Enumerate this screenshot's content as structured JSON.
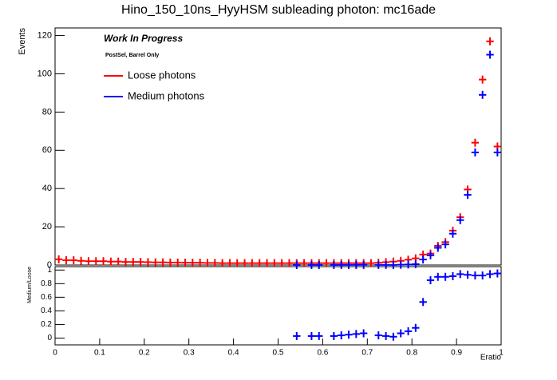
{
  "chart_data": [
    {
      "type": "scatter",
      "title": "Hino_150_10ns_HyyHSM subleading photon: mc16ade",
      "ylabel": "Events",
      "annotations": [
        "Work In Progress",
        "PostSel, Barrel Only"
      ],
      "xlim": [
        0,
        1
      ],
      "ylim": [
        0,
        124
      ],
      "yticks": [
        0,
        20,
        40,
        60,
        80,
        100,
        120
      ],
      "legend": "top-left",
      "x": [
        0.0083,
        0.025,
        0.0417,
        0.0583,
        0.075,
        0.0917,
        0.1083,
        0.125,
        0.1417,
        0.1583,
        0.175,
        0.1917,
        0.2083,
        0.225,
        0.2417,
        0.2583,
        0.275,
        0.2917,
        0.3083,
        0.325,
        0.3417,
        0.3583,
        0.375,
        0.3917,
        0.4083,
        0.425,
        0.4417,
        0.4583,
        0.475,
        0.4917,
        0.5083,
        0.525,
        0.5417,
        0.5583,
        0.575,
        0.5917,
        0.6083,
        0.625,
        0.6417,
        0.6583,
        0.675,
        0.6917,
        0.7083,
        0.725,
        0.7417,
        0.7583,
        0.775,
        0.7917,
        0.8083,
        0.825,
        0.8417,
        0.8583,
        0.875,
        0.8917,
        0.9083,
        0.925,
        0.9417,
        0.9583,
        0.975,
        0.9917
      ],
      "series": [
        {
          "name": "Loose photons",
          "color": "#ff0000",
          "values": [
            3,
            2.5,
            2.5,
            2.2,
            2,
            2,
            2,
            1.8,
            1.8,
            1.6,
            1.6,
            1.6,
            1.5,
            1.4,
            1.4,
            1.3,
            1.3,
            1.2,
            1.2,
            1.2,
            1.1,
            1.1,
            1,
            1,
            1,
            1,
            1,
            1,
            1,
            1,
            1,
            1,
            1,
            1,
            1,
            1,
            1,
            1,
            1,
            1,
            1,
            1,
            1,
            1.2,
            1.5,
            1.8,
            2.2,
            2.8,
            3.5,
            5.5,
            6,
            10,
            12,
            18,
            25,
            39.5,
            64,
            97,
            117,
            62
          ]
        },
        {
          "name": "Medium photons",
          "color": "#0000ff",
          "values": [
            null,
            null,
            null,
            null,
            null,
            null,
            null,
            null,
            null,
            null,
            null,
            null,
            null,
            null,
            null,
            null,
            null,
            null,
            null,
            null,
            null,
            null,
            null,
            null,
            null,
            null,
            null,
            null,
            null,
            null,
            null,
            null,
            0.03,
            null,
            0.03,
            0.03,
            null,
            0.03,
            0.04,
            0.05,
            0.06,
            0.07,
            null,
            0.05,
            0.05,
            0.04,
            0.15,
            0.28,
            0.5,
            2.9,
            5.1,
            9,
            10.8,
            16.4,
            23.5,
            36.7,
            58.9,
            89,
            110,
            58.9
          ]
        }
      ]
    },
    {
      "type": "scatter",
      "ylabel": "Medium/Loose",
      "xlabel": "Eratio",
      "xlim": [
        0,
        1
      ],
      "ylim": [
        -0.1,
        1.05
      ],
      "xticks": [
        0,
        0.1,
        0.2,
        0.3,
        0.4,
        0.5,
        0.6,
        0.7,
        0.8,
        0.9,
        1
      ],
      "yticks": [
        0,
        0.2,
        0.4,
        0.6,
        0.8,
        1
      ],
      "x": [
        0.0083,
        0.025,
        0.0417,
        0.0583,
        0.075,
        0.0917,
        0.1083,
        0.125,
        0.1417,
        0.1583,
        0.175,
        0.1917,
        0.2083,
        0.225,
        0.2417,
        0.2583,
        0.275,
        0.2917,
        0.3083,
        0.325,
        0.3417,
        0.3583,
        0.375,
        0.3917,
        0.4083,
        0.425,
        0.4417,
        0.4583,
        0.475,
        0.4917,
        0.5083,
        0.525,
        0.5417,
        0.5583,
        0.575,
        0.5917,
        0.6083,
        0.625,
        0.6417,
        0.6583,
        0.675,
        0.6917,
        0.7083,
        0.725,
        0.7417,
        0.7583,
        0.775,
        0.7917,
        0.8083,
        0.825,
        0.8417,
        0.8583,
        0.875,
        0.8917,
        0.9083,
        0.925,
        0.9417,
        0.9583,
        0.975,
        0.9917
      ],
      "series": [
        {
          "color": "#0000ff",
          "values": [
            null,
            null,
            null,
            null,
            null,
            null,
            null,
            null,
            null,
            null,
            null,
            null,
            null,
            null,
            null,
            null,
            null,
            null,
            null,
            null,
            null,
            null,
            null,
            null,
            null,
            null,
            null,
            null,
            null,
            null,
            null,
            null,
            0.03,
            null,
            0.03,
            0.03,
            null,
            0.03,
            0.04,
            0.05,
            0.06,
            0.07,
            null,
            0.04,
            0.03,
            0.02,
            0.07,
            0.1,
            0.15,
            0.53,
            0.85,
            0.9,
            0.9,
            0.91,
            0.94,
            0.93,
            0.92,
            0.92,
            0.94,
            0.95
          ]
        }
      ]
    }
  ]
}
